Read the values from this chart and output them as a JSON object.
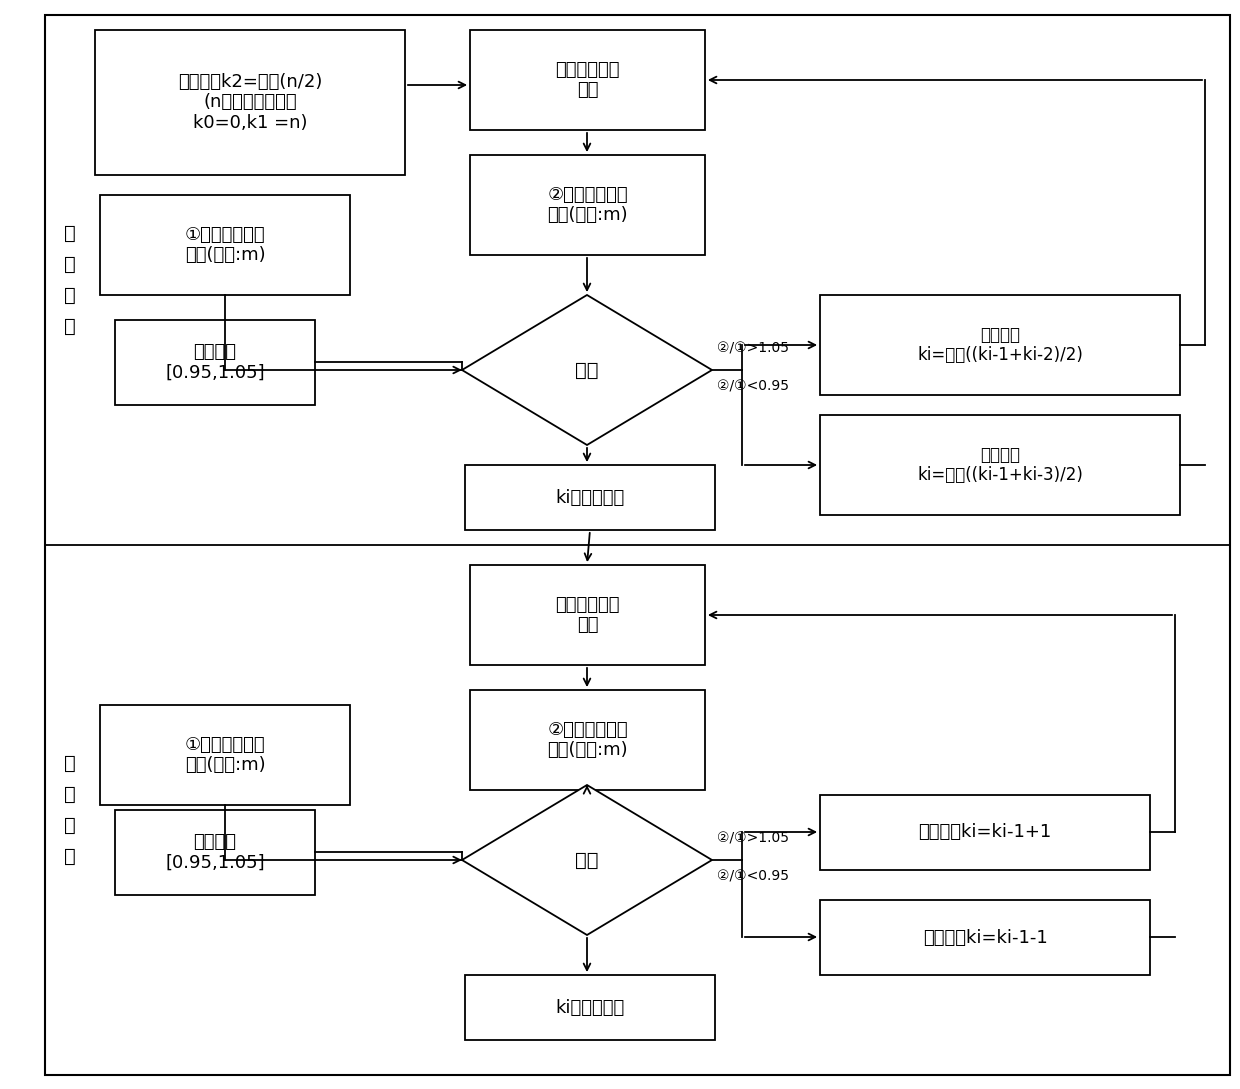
{
  "fig_width": 12.4,
  "fig_height": 10.89,
  "lw": 1.3,
  "top_label": "离\n线\n训\n练",
  "bottom_label": "在\n线\n决\n策",
  "tbox1": "划分数量k2=取整(n/2)\n(n为数据总数量，\nk0=0,k1 =n)",
  "tbox2": "告警高发区域\n识别",
  "tbox3": "①检修人员巡视\n半径(单位:m)",
  "tbox4": "②告警高发区域\n半径(单位:m)",
  "tbox5": "置信区间\n[0.95,1.05]",
  "td1": "比对",
  "tbox6": "划分数量\nki=取整((ki-1+ki-2)/2)",
  "tbox7": "划分数量\nki=取整((ki-1+ki-3)/2)",
  "tbox8": "ki值为建议值",
  "bbox9": "高发告警区域\n识别",
  "bbox10": "①检修人员巡视\n半径(单位:m)",
  "bbox11": "②告警高发区域\n半径(单位:m)",
  "bbox12": "置信区间\n[0.95,1.05]",
  "bd2": "比对",
  "bbox13": "划分数量ki=ki-1+1",
  "bbox14": "划分数量ki=ki-1-1",
  "bbox15": "ki值为确定值",
  "lbl_gt": "②/①>1.05",
  "lbl_lt": "②/①<0.95"
}
